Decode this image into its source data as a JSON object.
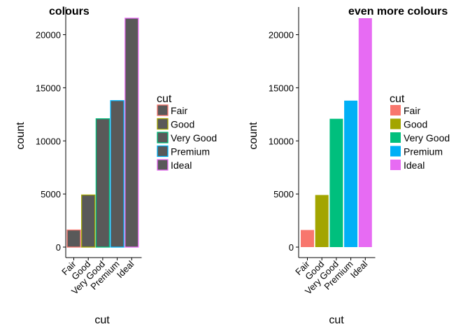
{
  "chart_data": [
    {
      "type": "bar",
      "style": "outline",
      "title": "colours",
      "xlabel": "cut",
      "ylabel": "count",
      "categories": [
        "Fair",
        "Good",
        "Very Good",
        "Premium",
        "Ideal"
      ],
      "values": [
        1610,
        4906,
        12082,
        13791,
        21551
      ],
      "bar_fill": "#595959",
      "colors": [
        "#F8766D",
        "#A3A500",
        "#00BF7D",
        "#00B0F6",
        "#E76BF3"
      ],
      "yticks": [
        0,
        5000,
        10000,
        15000,
        20000
      ],
      "ylim": [
        0,
        21551
      ],
      "legend": {
        "title": "cut",
        "placement": "right",
        "entries": [
          "Fair",
          "Good",
          "Very Good",
          "Premium",
          "Ideal"
        ]
      },
      "grid": false
    },
    {
      "type": "bar",
      "style": "filled",
      "title": "even more colours",
      "xlabel": "cut",
      "ylabel": "count",
      "categories": [
        "Fair",
        "Good",
        "Very Good",
        "Premium",
        "Ideal"
      ],
      "values": [
        1610,
        4906,
        12082,
        13791,
        21551
      ],
      "colors": [
        "#F8766D",
        "#A3A500",
        "#00BF7D",
        "#00B0F6",
        "#E76BF3"
      ],
      "yticks": [
        0,
        5000,
        10000,
        15000,
        20000
      ],
      "ylim": [
        0,
        21551
      ],
      "legend": {
        "title": "cut",
        "placement": "right",
        "entries": [
          "Fair",
          "Good",
          "Very Good",
          "Premium",
          "Ideal"
        ]
      },
      "grid": false
    }
  ]
}
